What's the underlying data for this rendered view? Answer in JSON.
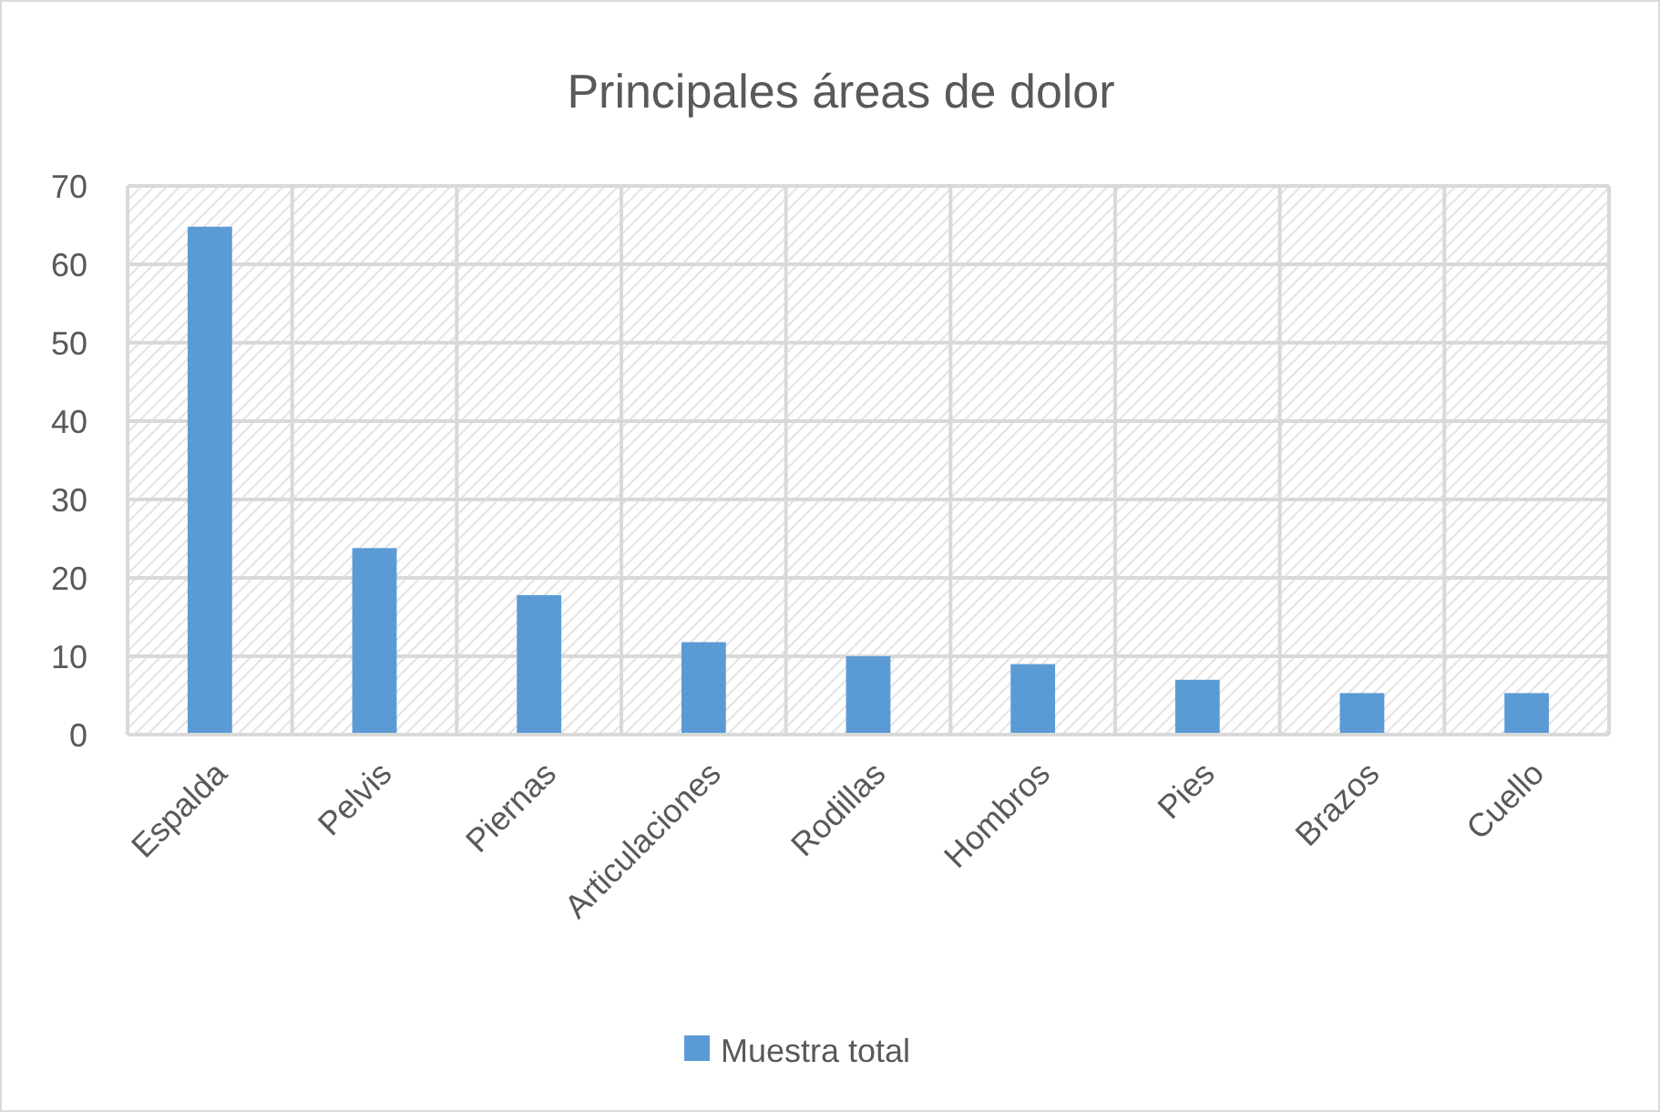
{
  "chart_data": {
    "type": "bar",
    "title": "Principales áreas de dolor",
    "categories": [
      "Espalda",
      "Pelvis",
      "Piernas",
      "Articulaciones",
      "Rodillas",
      "Hombros",
      "Pies",
      "Brazos",
      "Cuello"
    ],
    "series": [
      {
        "name": "Muestra total",
        "color": "#5b9bd5",
        "values": [
          64.8,
          23.8,
          17.8,
          11.8,
          10.0,
          9.0,
          7.0,
          5.3,
          5.3
        ]
      }
    ],
    "ylim": [
      0,
      70
    ],
    "yticks": [
      0,
      10,
      20,
      30,
      40,
      50,
      60,
      70
    ],
    "grid": true,
    "legend": "bottom"
  }
}
